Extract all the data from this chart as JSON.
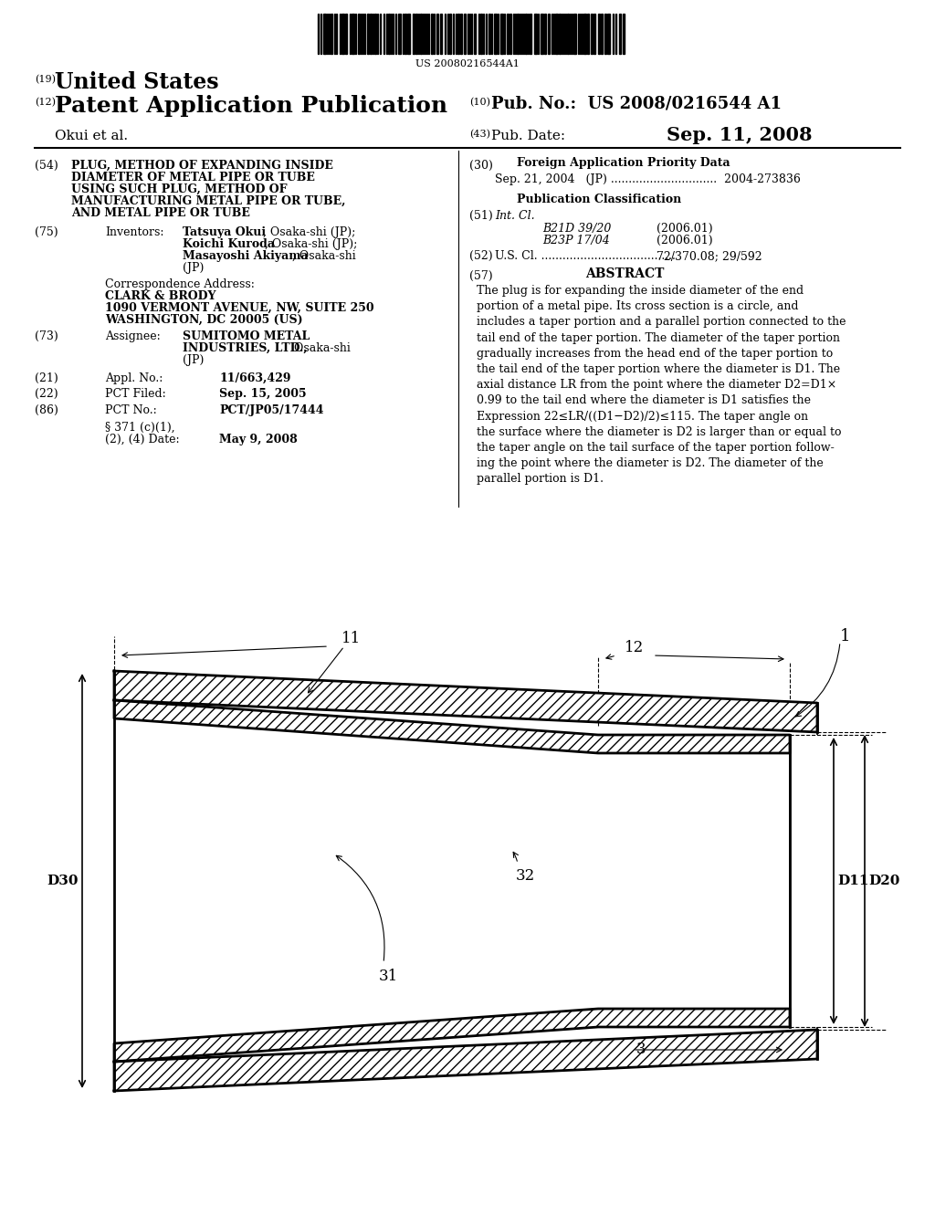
{
  "background_color": "#ffffff",
  "barcode_text": "US 20080216544A1",
  "header": {
    "tag19": "(19)",
    "united_states": "United States",
    "tag12": "(12)",
    "pat_app_pub": "Patent Application Publication",
    "tag10": "(10)",
    "pub_no_label": "Pub. No.:",
    "pub_no": "US 2008/0216544 A1",
    "inventors": "Okui et al.",
    "tag43": "(43)",
    "pub_date_label": "Pub. Date:",
    "pub_date": "Sep. 11, 2008"
  },
  "left_col": {
    "tag54": "(54)",
    "tag75": "(75)",
    "tag73": "(73)",
    "tag21": "(21)",
    "tag22": "(22)",
    "tag86": "(86)"
  },
  "right_col": {
    "tag30": "(30)",
    "tag51": "(51)",
    "tag52": "(52)",
    "tag57": "(57)"
  }
}
